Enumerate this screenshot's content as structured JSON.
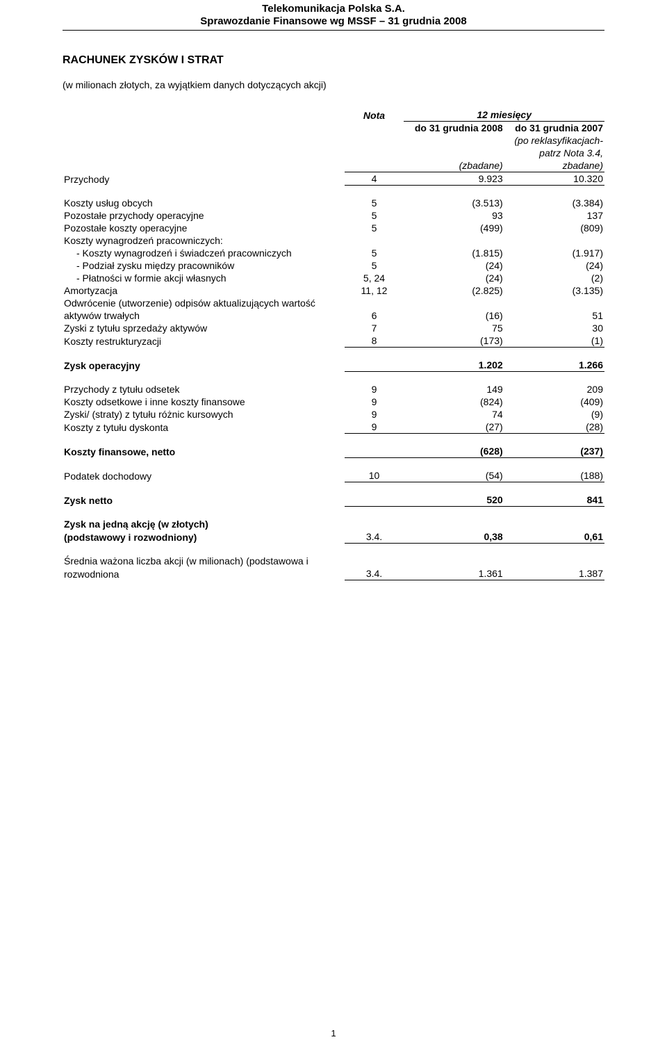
{
  "header": {
    "company": "Telekomunikacja Polska S.A.",
    "report": "Sprawozdanie Finansowe wg MSSF – 31 grudnia 2008"
  },
  "title": "RACHUNEK ZYSKÓW I STRAT",
  "subtitle": "(w milionach złotych, za wyjątkiem danych dotyczących akcji)",
  "columns": {
    "nota": "Nota",
    "period": "12 miesięcy",
    "col1": "do 31 grudnia 2008",
    "col1_sub": "(zbadane)",
    "col2": "do 31 grudnia 2007",
    "col2_sub1": "(po reklasyfikacjach-",
    "col2_sub2": "patrz Nota 3.4,",
    "col2_sub3": "zbadane)"
  },
  "rows": {
    "przychody": {
      "label": "Przychody",
      "nota": "4",
      "v1": "9.923",
      "v2": "10.320"
    },
    "koszty_uslug": {
      "label": "Koszty usług obcych",
      "nota": "5",
      "v1": "(3.513)",
      "v2": "(3.384)"
    },
    "poz_przych": {
      "label": "Pozostałe przychody operacyjne",
      "nota": "5",
      "v1": "93",
      "v2": "137"
    },
    "poz_koszty": {
      "label": "Pozostałe koszty operacyjne",
      "nota": "5",
      "v1": "(499)",
      "v2": "(809)"
    },
    "koszty_wyn": {
      "label": "Koszty wynagrodzeń pracowniczych:"
    },
    "wyn_swiad": {
      "label": "- Koszty wynagrodzeń i świadczeń pracowniczych",
      "nota": "5",
      "v1": "(1.815)",
      "v2": "(1.917)"
    },
    "podzial": {
      "label": "- Podział zysku między pracowników",
      "nota": "5",
      "v1": "(24)",
      "v2": "(24)"
    },
    "platnosci": {
      "label": "- Płatności w formie akcji własnych",
      "nota": "5, 24",
      "v1": "(24)",
      "v2": "(2)"
    },
    "amortyzacja": {
      "label": "Amortyzacja",
      "nota": "11, 12",
      "v1": "(2.825)",
      "v2": "(3.135)"
    },
    "odwrocenie1": {
      "label": "Odwrócenie (utworzenie) odpisów aktualizujących wartość"
    },
    "odwrocenie2": {
      "label": "aktywów trwałych",
      "nota": "6",
      "v1": "(16)",
      "v2": "51"
    },
    "zyski_sprzed": {
      "label": "Zyski z tytułu sprzedaży aktywów",
      "nota": "7",
      "v1": "75",
      "v2": "30"
    },
    "koszty_restr": {
      "label": "Koszty restrukturyzacji",
      "nota": "8",
      "v1": "(173)",
      "v2": "(1)"
    },
    "zysk_oper": {
      "label": "Zysk operacyjny",
      "v1": "1.202",
      "v2": "1.266"
    },
    "przych_odsetek": {
      "label": "Przychody z tytułu odsetek",
      "nota": "9",
      "v1": "149",
      "v2": "209"
    },
    "koszty_odset": {
      "label": "Koszty odsetkowe i inne koszty finansowe",
      "nota": "9",
      "v1": "(824)",
      "v2": "(409)"
    },
    "zyski_kurs": {
      "label": "Zyski/ (straty) z tytułu różnic kursowych",
      "nota": "9",
      "v1": "74",
      "v2": "(9)"
    },
    "koszty_dysk": {
      "label": "Koszty z tytułu dyskonta",
      "nota": "9",
      "v1": "(27)",
      "v2": "(28)"
    },
    "koszty_fin": {
      "label": "Koszty finansowe, netto",
      "v1": "(628)",
      "v2": "(237)"
    },
    "podatek": {
      "label": "Podatek dochodowy",
      "nota": "10",
      "v1": "(54)",
      "v2": "(188)"
    },
    "zysk_netto": {
      "label": "Zysk netto",
      "v1": "520",
      "v2": "841"
    },
    "eps1": {
      "label": "Zysk na jedną akcję (w złotych)"
    },
    "eps2": {
      "label": "(podstawowy i rozwodniony)",
      "nota": "3.4.",
      "v1": "0,38",
      "v2": "0,61"
    },
    "wa1": {
      "label": "Średnia ważona liczba akcji (w milionach) (podstawowa i"
    },
    "wa2": {
      "label": "rozwodniona",
      "nota": "3.4.",
      "v1": "1.361",
      "v2": "1.387"
    }
  },
  "pagenum": "1"
}
